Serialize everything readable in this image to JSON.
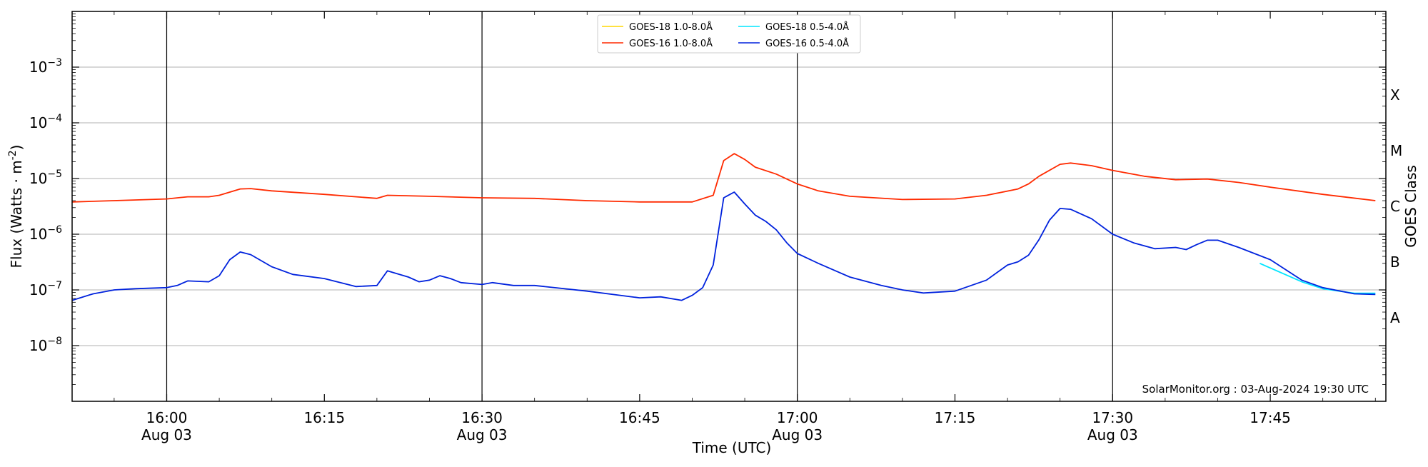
{
  "chart_data": {
    "type": "line",
    "title": "",
    "xlabel": "Time (UTC)",
    "ylabel": "Flux (Watts · m",
    "ylabel_exponent": "-2",
    "ylabel_close": ")",
    "right_axis_label": "GOES Class",
    "x_range": [
      "15:51",
      "17:56"
    ],
    "y_range": [
      1e-09,
      0.01
    ],
    "y_scale": "log",
    "y_ticks": [
      {
        "value": 1e-08,
        "base": "10",
        "exp": "−8"
      },
      {
        "value": 1e-07,
        "base": "10",
        "exp": "−7"
      },
      {
        "value": 1e-06,
        "base": "10",
        "exp": "−6"
      },
      {
        "value": 1e-05,
        "base": "10",
        "exp": "−5"
      },
      {
        "value": 0.0001,
        "base": "10",
        "exp": "−4"
      },
      {
        "value": 0.001,
        "base": "10",
        "exp": "−3"
      }
    ],
    "x_ticks": [
      {
        "time": "16:00",
        "label": "16:00",
        "date": "Aug 03"
      },
      {
        "time": "16:15",
        "label": "16:15",
        "date": ""
      },
      {
        "time": "16:30",
        "label": "16:30",
        "date": "Aug 03"
      },
      {
        "time": "16:45",
        "label": "16:45",
        "date": ""
      },
      {
        "time": "17:00",
        "label": "17:00",
        "date": "Aug 03"
      },
      {
        "time": "17:15",
        "label": "17:15",
        "date": ""
      },
      {
        "time": "17:30",
        "label": "17:30",
        "date": "Aug 03"
      },
      {
        "time": "17:45",
        "label": "17:45",
        "date": ""
      }
    ],
    "vertical_lines": [
      "16:00",
      "16:30",
      "17:00",
      "17:30"
    ],
    "goes_classes": [
      {
        "label": "A",
        "value": 3.16e-08
      },
      {
        "label": "B",
        "value": 3.16e-07
      },
      {
        "label": "C",
        "value": 3.16e-06
      },
      {
        "label": "M",
        "value": 3.16e-05
      },
      {
        "label": "X",
        "value": 0.000316
      }
    ],
    "grid": "horizontal",
    "legend_position": "top-center",
    "legend": [
      {
        "label": "GOES-18 1.0-8.0Å",
        "color": "#ffd700"
      },
      {
        "label": "GOES-18 0.5-4.0Å",
        "color": "#00e5ff"
      },
      {
        "label": "GOES-16 1.0-8.0Å",
        "color": "#ff2a00"
      },
      {
        "label": "GOES-16 0.5-4.0Å",
        "color": "#0022dd"
      }
    ],
    "series": [
      {
        "name": "GOES-16 1.0-8.0Å",
        "color": "#ff2a00",
        "points": [
          [
            "15:51",
            3.8e-06
          ],
          [
            "15:55",
            4e-06
          ],
          [
            "16:00",
            4.3e-06
          ],
          [
            "16:02",
            4.7e-06
          ],
          [
            "16:04",
            4.7e-06
          ],
          [
            "16:05",
            5e-06
          ],
          [
            "16:07",
            6.5e-06
          ],
          [
            "16:08",
            6.6e-06
          ],
          [
            "16:10",
            6e-06
          ],
          [
            "16:15",
            5.2e-06
          ],
          [
            "16:20",
            4.4e-06
          ],
          [
            "16:21",
            5e-06
          ],
          [
            "16:25",
            4.8e-06
          ],
          [
            "16:30",
            4.5e-06
          ],
          [
            "16:35",
            4.4e-06
          ],
          [
            "16:40",
            4e-06
          ],
          [
            "16:45",
            3.8e-06
          ],
          [
            "16:50",
            3.8e-06
          ],
          [
            "16:52",
            5e-06
          ],
          [
            "16:53",
            2.1e-05
          ],
          [
            "16:54",
            2.8e-05
          ],
          [
            "16:55",
            2.2e-05
          ],
          [
            "16:56",
            1.6e-05
          ],
          [
            "16:58",
            1.2e-05
          ],
          [
            "17:00",
            8e-06
          ],
          [
            "17:02",
            6e-06
          ],
          [
            "17:05",
            4.8e-06
          ],
          [
            "17:10",
            4.2e-06
          ],
          [
            "17:15",
            4.3e-06
          ],
          [
            "17:18",
            5e-06
          ],
          [
            "17:21",
            6.5e-06
          ],
          [
            "17:22",
            8e-06
          ],
          [
            "17:23",
            1.1e-05
          ],
          [
            "17:25",
            1.8e-05
          ],
          [
            "17:26",
            1.9e-05
          ],
          [
            "17:28",
            1.7e-05
          ],
          [
            "17:30",
            1.4e-05
          ],
          [
            "17:33",
            1.1e-05
          ],
          [
            "17:36",
            9.5e-06
          ],
          [
            "17:39",
            9.8e-06
          ],
          [
            "17:42",
            8.5e-06
          ],
          [
            "17:45",
            7e-06
          ],
          [
            "17:50",
            5.2e-06
          ],
          [
            "17:55",
            4e-06
          ]
        ]
      },
      {
        "name": "GOES-18 0.5-4.0Å",
        "color": "#00e5ff",
        "points": [
          [
            "17:44",
            3e-07
          ],
          [
            "17:48",
            1.4e-07
          ],
          [
            "17:50",
            1.05e-07
          ],
          [
            "17:53",
            8.7e-08
          ],
          [
            "17:55",
            8.7e-08
          ]
        ]
      },
      {
        "name": "GOES-16 0.5-4.0Å",
        "color": "#0022dd",
        "points": [
          [
            "15:51",
            6.5e-08
          ],
          [
            "15:53",
            8.5e-08
          ],
          [
            "15:55",
            1e-07
          ],
          [
            "15:57",
            1.05e-07
          ],
          [
            "16:00",
            1.1e-07
          ],
          [
            "16:01",
            1.2e-07
          ],
          [
            "16:02",
            1.45e-07
          ],
          [
            "16:04",
            1.4e-07
          ],
          [
            "16:05",
            1.8e-07
          ],
          [
            "16:06",
            3.5e-07
          ],
          [
            "16:07",
            4.8e-07
          ],
          [
            "16:08",
            4.3e-07
          ],
          [
            "16:10",
            2.6e-07
          ],
          [
            "16:12",
            1.9e-07
          ],
          [
            "16:15",
            1.6e-07
          ],
          [
            "16:18",
            1.15e-07
          ],
          [
            "16:20",
            1.2e-07
          ],
          [
            "16:21",
            2.2e-07
          ],
          [
            "16:23",
            1.7e-07
          ],
          [
            "16:24",
            1.4e-07
          ],
          [
            "16:25",
            1.5e-07
          ],
          [
            "16:26",
            1.8e-07
          ],
          [
            "16:27",
            1.6e-07
          ],
          [
            "16:28",
            1.35e-07
          ],
          [
            "16:30",
            1.25e-07
          ],
          [
            "16:31",
            1.35e-07
          ],
          [
            "16:33",
            1.2e-07
          ],
          [
            "16:35",
            1.2e-07
          ],
          [
            "16:40",
            9.5e-08
          ],
          [
            "16:45",
            7.2e-08
          ],
          [
            "16:47",
            7.5e-08
          ],
          [
            "16:49",
            6.5e-08
          ],
          [
            "16:50",
            8e-08
          ],
          [
            "16:51",
            1.1e-07
          ],
          [
            "16:52",
            2.8e-07
          ],
          [
            "16:53",
            4.5e-06
          ],
          [
            "16:54",
            5.7e-06
          ],
          [
            "16:55",
            3.5e-06
          ],
          [
            "16:56",
            2.2e-06
          ],
          [
            "16:57",
            1.7e-06
          ],
          [
            "16:58",
            1.2e-06
          ],
          [
            "16:59",
            7e-07
          ],
          [
            "17:00",
            4.5e-07
          ],
          [
            "17:02",
            3e-07
          ],
          [
            "17:05",
            1.7e-07
          ],
          [
            "17:08",
            1.2e-07
          ],
          [
            "17:10",
            1e-07
          ],
          [
            "17:12",
            8.8e-08
          ],
          [
            "17:15",
            9.5e-08
          ],
          [
            "17:18",
            1.5e-07
          ],
          [
            "17:20",
            2.8e-07
          ],
          [
            "17:21",
            3.2e-07
          ],
          [
            "17:22",
            4.2e-07
          ],
          [
            "17:23",
            8e-07
          ],
          [
            "17:24",
            1.8e-06
          ],
          [
            "17:25",
            2.9e-06
          ],
          [
            "17:26",
            2.8e-06
          ],
          [
            "17:28",
            1.9e-06
          ],
          [
            "17:30",
            1e-06
          ],
          [
            "17:32",
            7e-07
          ],
          [
            "17:34",
            5.5e-07
          ],
          [
            "17:36",
            5.8e-07
          ],
          [
            "17:37",
            5.3e-07
          ],
          [
            "17:38",
            6.5e-07
          ],
          [
            "17:39",
            7.8e-07
          ],
          [
            "17:40",
            7.8e-07
          ],
          [
            "17:42",
            5.8e-07
          ],
          [
            "17:45",
            3.5e-07
          ],
          [
            "17:48",
            1.5e-07
          ],
          [
            "17:50",
            1.1e-07
          ],
          [
            "17:53",
            8.5e-08
          ],
          [
            "17:55",
            8.3e-08
          ]
        ]
      }
    ],
    "annotation": "SolarMonitor.org : 03-Aug-2024 19:30 UTC"
  }
}
